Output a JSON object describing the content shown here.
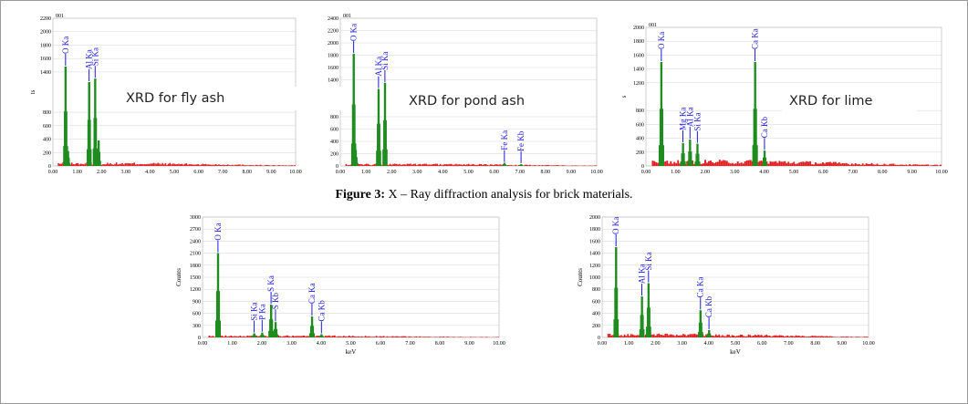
{
  "figure_caption": {
    "bold": "Figure 3:",
    "rest": " X – Ray diffraction analysis for brick materials."
  },
  "overlay_labels": [
    "XRD for fly ash",
    "XRD for pond ash",
    "XRD for lime"
  ],
  "colors": {
    "peak": "#1f8c1f",
    "background": "#e02020",
    "peak_label": "#1a1adc",
    "gridline": "#c8c8c8"
  },
  "chart_data": [
    {
      "type": "bar",
      "panel": "fly-ash",
      "title_top": "001",
      "xlabel": "",
      "ylabel": "ts",
      "xlim": [
        0,
        10
      ],
      "ylim": [
        0,
        2200
      ],
      "x_ticks": [
        "0.00",
        "1.00",
        "2.00",
        "3.00",
        "4.00",
        "5.00",
        "6.00",
        "7.00",
        "8.00",
        "9.00",
        "10.00"
      ],
      "y_ticks": [
        "0",
        "200",
        "400",
        "600",
        "800",
        "1400",
        "1600",
        "1800",
        "2000",
        "2200"
      ],
      "peaks": [
        {
          "x": 0.52,
          "y": 1480,
          "label": "O Ka"
        },
        {
          "x": 0.62,
          "y": 220,
          "label": ""
        },
        {
          "x": 1.49,
          "y": 1250,
          "label": "Al Ka"
        },
        {
          "x": 1.74,
          "y": 1300,
          "label": "Si Ka"
        },
        {
          "x": 1.88,
          "y": 380,
          "label": ""
        }
      ],
      "background_level": 40
    },
    {
      "type": "bar",
      "panel": "pond-ash",
      "title_top": "001",
      "xlabel": "",
      "ylabel": "ts",
      "xlim": [
        0,
        10
      ],
      "ylim": [
        0,
        2400
      ],
      "x_ticks": [
        "0.00",
        "1.00",
        "2.00",
        "3.00",
        "4.00",
        "5.00",
        "6.00",
        "7.00",
        "8.00",
        "9.00",
        "10.00"
      ],
      "y_ticks": [
        "0",
        "200",
        "400",
        "600",
        "800",
        "1400",
        "1600",
        "1800",
        "2000",
        "2200",
        "2400"
      ],
      "peaks": [
        {
          "x": 0.52,
          "y": 1820,
          "label": "O Ka"
        },
        {
          "x": 0.6,
          "y": 260,
          "label": ""
        },
        {
          "x": 1.49,
          "y": 1250,
          "label": "Al Ka"
        },
        {
          "x": 1.74,
          "y": 1350,
          "label": "Si Ka"
        },
        {
          "x": 6.4,
          "y": 50,
          "label": "Fe Ka"
        },
        {
          "x": 7.05,
          "y": 30,
          "label": "Fe Kb"
        }
      ],
      "background_level": 30
    },
    {
      "type": "bar",
      "panel": "lime",
      "title_top": "001",
      "xlabel": "",
      "ylabel": "s",
      "xlim": [
        0,
        10
      ],
      "ylim": [
        0,
        2000
      ],
      "x_ticks": [
        "0.00",
        "1.00",
        "2.00",
        "3.00",
        "4.00",
        "5.00",
        "6.00",
        "7.00",
        "8.00",
        "9.00",
        "10.00"
      ],
      "y_ticks": [
        "0",
        "200",
        "400",
        "600",
        "800",
        "1200",
        "1400",
        "1600",
        "1800",
        "2000"
      ],
      "peaks": [
        {
          "x": 0.52,
          "y": 1500,
          "label": "O Ka"
        },
        {
          "x": 1.25,
          "y": 330,
          "label": "Mg Ka"
        },
        {
          "x": 1.49,
          "y": 380,
          "label": "Al Ka"
        },
        {
          "x": 1.74,
          "y": 320,
          "label": "Si Ka"
        },
        {
          "x": 3.69,
          "y": 1500,
          "label": "Ca Ka"
        },
        {
          "x": 4.01,
          "y": 220,
          "label": "Ca Kb"
        }
      ],
      "background_level": 70
    },
    {
      "type": "bar",
      "panel": "brick-1",
      "title_top": "",
      "xlabel": "keV",
      "ylabel": "Counts",
      "xlim": [
        0,
        10
      ],
      "ylim": [
        0,
        3000
      ],
      "x_ticks": [
        "0.00",
        "1.00",
        "2.00",
        "3.00",
        "4.00",
        "5.00",
        "6.00",
        "7.00",
        "8.00",
        "9.00",
        "10.00"
      ],
      "y_ticks": [
        "0",
        "300",
        "600",
        "900",
        "1200",
        "1500",
        "1800",
        "2100",
        "2400",
        "2700",
        "3000"
      ],
      "peaks": [
        {
          "x": 0.52,
          "y": 2100,
          "label": "O Ka"
        },
        {
          "x": 1.74,
          "y": 100,
          "label": "Si Ka"
        },
        {
          "x": 2.01,
          "y": 120,
          "label": "P Ka"
        },
        {
          "x": 2.31,
          "y": 820,
          "label": "S Ka"
        },
        {
          "x": 2.46,
          "y": 380,
          "label": "S Kb"
        },
        {
          "x": 3.69,
          "y": 520,
          "label": "Ca Ka"
        },
        {
          "x": 4.01,
          "y": 80,
          "label": "Ca Kb"
        }
      ],
      "background_level": 40
    },
    {
      "type": "bar",
      "panel": "brick-2",
      "title_top": "",
      "xlabel": "keV",
      "ylabel": "Counts",
      "xlim": [
        0,
        10
      ],
      "ylim": [
        0,
        2000
      ],
      "x_ticks": [
        "0.00",
        "1.00",
        "2.00",
        "3.00",
        "4.00",
        "5.00",
        "6.00",
        "7.00",
        "8.00",
        "9.00",
        "10.00"
      ],
      "y_ticks": [
        "0",
        "200",
        "400",
        "600",
        "800",
        "1000",
        "1200",
        "1400",
        "1600",
        "1800",
        "2000"
      ],
      "peaks": [
        {
          "x": 0.52,
          "y": 1500,
          "label": "O Ka"
        },
        {
          "x": 1.49,
          "y": 680,
          "label": "Al Ka"
        },
        {
          "x": 1.74,
          "y": 900,
          "label": "Si Ka"
        },
        {
          "x": 3.69,
          "y": 450,
          "label": "Ca Ka"
        },
        {
          "x": 4.01,
          "y": 120,
          "label": "Ca Kb"
        }
      ],
      "background_level": 50
    }
  ]
}
